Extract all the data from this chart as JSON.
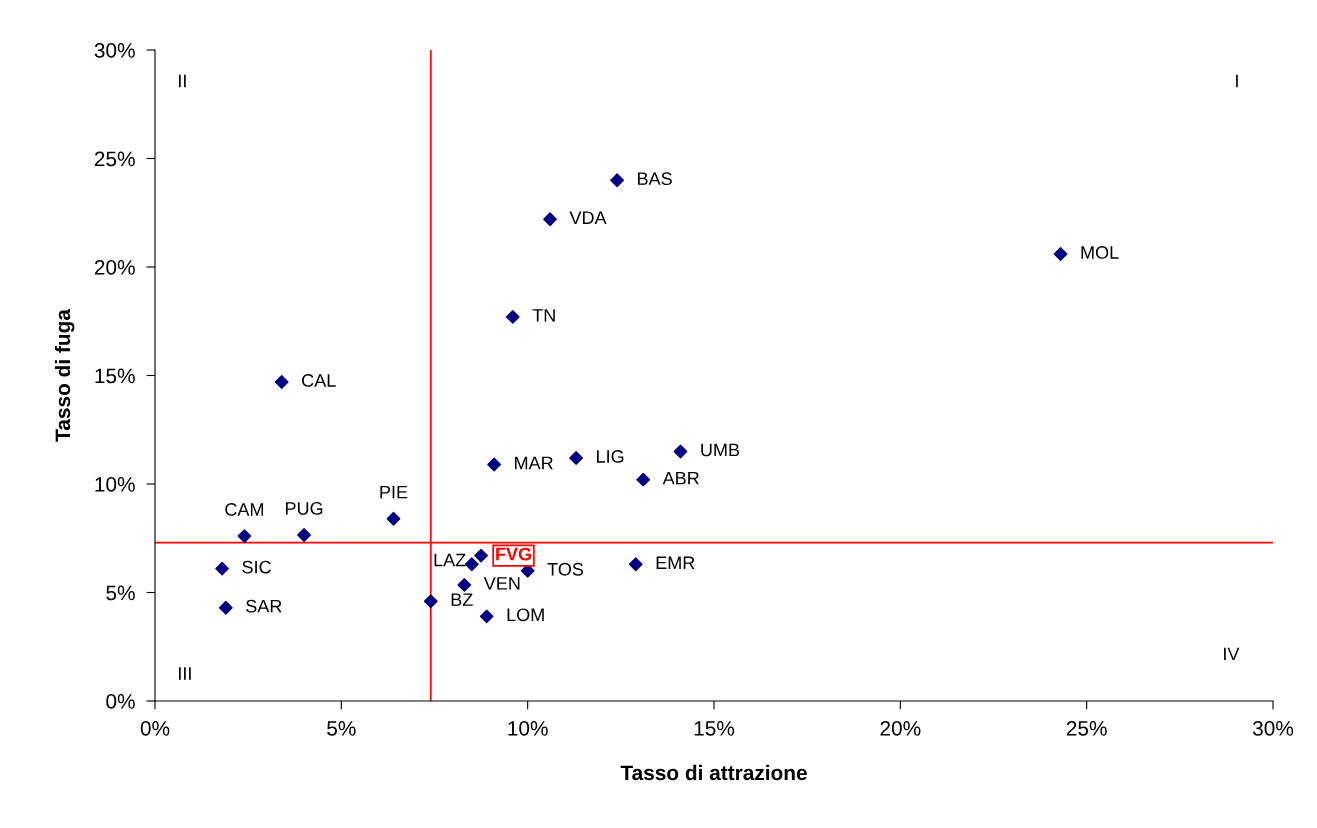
{
  "chart_data": {
    "type": "scatter",
    "xlabel": "Tasso di attrazione",
    "ylabel": "Tasso di fuga",
    "x": [
      12.4,
      10.6,
      24.3,
      9.6,
      3.4,
      9.1,
      11.3,
      14.1,
      13.1,
      6.4,
      2.4,
      4.0,
      8.75,
      8.5,
      10.0,
      12.9,
      1.8,
      8.3,
      7.4,
      1.9,
      8.9
    ],
    "values": [
      24.0,
      22.2,
      20.6,
      17.7,
      14.7,
      10.9,
      11.2,
      11.5,
      10.2,
      8.4,
      7.6,
      7.65,
      6.7,
      6.3,
      6.0,
      6.3,
      6.1,
      5.35,
      4.6,
      4.3,
      3.9
    ],
    "value_labels": [
      "BAS",
      "VDA",
      "MOL",
      "TN",
      "CAL",
      "MAR",
      "LIG",
      "UMB",
      "ABR",
      "PIE",
      "CAM",
      "PUG",
      null,
      "LAZ",
      "TOS",
      "EMR",
      "SIC",
      "VEN",
      "BZ",
      "SAR",
      "LOM"
    ],
    "color": "#000080",
    "marker": "diamond",
    "xlim": [
      0,
      30
    ],
    "ylim": [
      0,
      30
    ],
    "xticks": [
      {
        "value": 0,
        "label": "0%"
      },
      {
        "value": 5,
        "label": "5%"
      },
      {
        "value": 10,
        "label": "10%"
      },
      {
        "value": 15,
        "label": "15%"
      },
      {
        "value": 20,
        "label": "20%"
      },
      {
        "value": 25,
        "label": "25%"
      },
      {
        "value": 30,
        "label": "30%"
      }
    ],
    "yticks": [
      {
        "value": 0,
        "label": "0%"
      },
      {
        "value": 5,
        "label": "5%"
      },
      {
        "value": 10,
        "label": "10%"
      },
      {
        "value": 15,
        "label": "15%"
      },
      {
        "value": 20,
        "label": "20%"
      },
      {
        "value": 25,
        "label": "25%"
      },
      {
        "value": 30,
        "label": "30%"
      }
    ],
    "ref_lines": [
      {
        "axis": "x",
        "value": 7.4,
        "color": "#ff0000"
      },
      {
        "axis": "y",
        "value": 7.3,
        "color": "#ff0000"
      }
    ],
    "annotations": [
      "I",
      "II",
      "III",
      "IV",
      {
        "text": "FVG",
        "x": 8.75,
        "y": 6.7
      }
    ],
    "grid": false,
    "legend": false
  }
}
